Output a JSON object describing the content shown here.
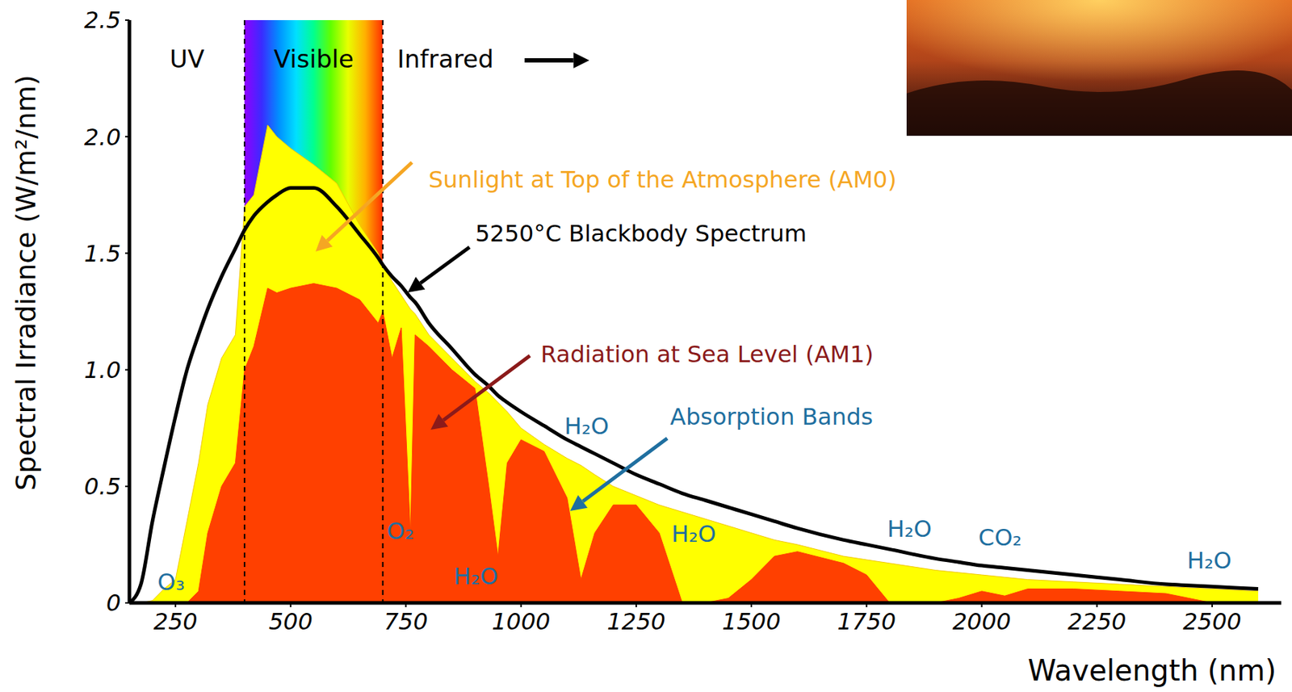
{
  "chart_data": {
    "type": "area",
    "x_label": "Wavelength (nm)",
    "y_label": "Spectral Irradiance (W/m²/nm)",
    "x": [
      150,
      175,
      200,
      225,
      250,
      275,
      300,
      320,
      350,
      380,
      400,
      420,
      450,
      470,
      500,
      550,
      600,
      650,
      690,
      700,
      720,
      740,
      760,
      770,
      800,
      850,
      900,
      930,
      950,
      970,
      1000,
      1050,
      1100,
      1130,
      1160,
      1200,
      1250,
      1300,
      1350,
      1400,
      1450,
      1500,
      1550,
      1600,
      1700,
      1750,
      1800,
      1900,
      1950,
      2000,
      2050,
      2100,
      2200,
      2300,
      2400,
      2450,
      2500,
      2600
    ],
    "series": [
      {
        "name": "Sunlight at Top of the Atmosphere (AM0)",
        "type": "area",
        "color": "#ffff00",
        "values": [
          0,
          0,
          0.01,
          0.06,
          0.1,
          0.35,
          0.6,
          0.85,
          1.05,
          1.15,
          1.7,
          1.75,
          2.05,
          2.0,
          1.95,
          1.88,
          1.8,
          1.62,
          1.5,
          1.45,
          1.38,
          1.32,
          1.26,
          1.24,
          1.15,
          1.05,
          0.95,
          0.9,
          0.86,
          0.82,
          0.75,
          0.68,
          0.62,
          0.59,
          0.55,
          0.5,
          0.46,
          0.42,
          0.39,
          0.36,
          0.33,
          0.3,
          0.27,
          0.25,
          0.2,
          0.185,
          0.17,
          0.14,
          0.13,
          0.12,
          0.11,
          0.1,
          0.09,
          0.08,
          0.07,
          0.065,
          0.06,
          0.05
        ]
      },
      {
        "name": "Radiation at Sea Level (AM1)",
        "type": "area",
        "color": "#ff4000",
        "values": [
          0,
          0,
          0,
          0,
          0,
          0,
          0.05,
          0.3,
          0.5,
          0.6,
          1.0,
          1.1,
          1.35,
          1.33,
          1.35,
          1.37,
          1.35,
          1.3,
          1.2,
          1.25,
          1.05,
          1.18,
          0.3,
          1.15,
          1.1,
          1.0,
          0.92,
          0.5,
          0.2,
          0.6,
          0.7,
          0.65,
          0.45,
          0.1,
          0.3,
          0.42,
          0.42,
          0.3,
          0,
          0,
          0.02,
          0.1,
          0.2,
          0.22,
          0.17,
          0.12,
          0,
          0,
          0.02,
          0.05,
          0.03,
          0.06,
          0.06,
          0.05,
          0.04,
          0.02,
          0,
          0
        ]
      },
      {
        "name": "5250°C Blackbody Spectrum",
        "type": "line",
        "color": "#000000",
        "values": [
          0,
          0.08,
          0.35,
          0.58,
          0.8,
          1.0,
          1.15,
          1.26,
          1.4,
          1.52,
          1.6,
          1.66,
          1.72,
          1.75,
          1.78,
          1.78,
          1.7,
          1.58,
          1.48,
          1.45,
          1.4,
          1.36,
          1.31,
          1.29,
          1.2,
          1.09,
          0.98,
          0.93,
          0.89,
          0.86,
          0.82,
          0.76,
          0.7,
          0.67,
          0.64,
          0.6,
          0.55,
          0.51,
          0.47,
          0.44,
          0.41,
          0.38,
          0.35,
          0.32,
          0.27,
          0.25,
          0.23,
          0.19,
          0.175,
          0.16,
          0.15,
          0.14,
          0.12,
          0.1,
          0.08,
          0.075,
          0.07,
          0.06
        ]
      }
    ],
    "xlim": [
      150,
      2650
    ],
    "xticks": [
      250,
      500,
      750,
      1000,
      1250,
      1500,
      1750,
      2000,
      2250,
      2500
    ],
    "ylim": [
      0,
      2.5
    ],
    "yticks": [
      0,
      0.5,
      {
        "value": 1,
        "label": "1.0"
      },
      1.5,
      {
        "value": 2,
        "label": "2.0"
      },
      2.5
    ],
    "grid": false,
    "bands": [
      {
        "label": "UV"
      },
      {
        "label": "Visible",
        "range": [
          400,
          700
        ]
      },
      {
        "label": "Infrared"
      }
    ],
    "absorption": {
      "label": "Absorption Bands",
      "labels": [
        "O₃",
        "O₂",
        "H₂O",
        "H₂O",
        "H₂O",
        "H₂O",
        "CO₂",
        "H₂O"
      ]
    }
  }
}
